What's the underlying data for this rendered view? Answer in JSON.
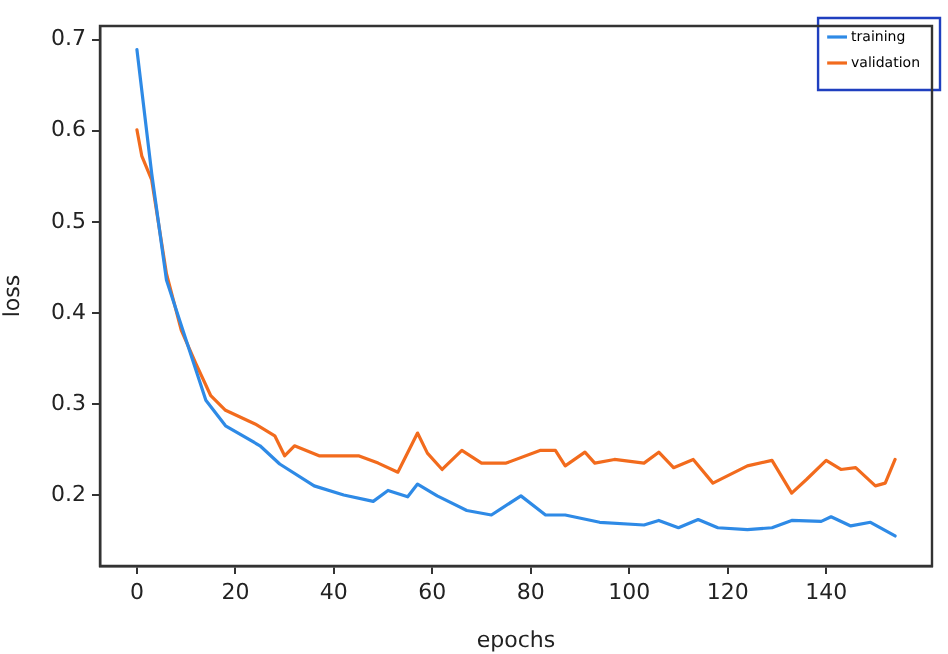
{
  "chart_data": {
    "type": "line",
    "xlabel": "epochs",
    "ylabel": "loss",
    "xlim": [
      -7.5,
      161.5
    ],
    "ylim": [
      0.122,
      0.715
    ],
    "xticks": [
      0,
      20,
      40,
      60,
      80,
      100,
      120,
      140
    ],
    "yticks": [
      0.2,
      0.3,
      0.4,
      0.5,
      0.6,
      0.7
    ],
    "grid": false,
    "legend": "top right",
    "marker": "none",
    "line_style": "solid",
    "series": [
      {
        "name": "training",
        "color": "#2e8ae6",
        "x": [
          0,
          3,
          6,
          10,
          14,
          18,
          25,
          29,
          36,
          42,
          48,
          51,
          55,
          57,
          61,
          67,
          72,
          78,
          83,
          87,
          94,
          103,
          106,
          110,
          114,
          118,
          124,
          129,
          133,
          139,
          141,
          145,
          149,
          154
        ],
        "values": [
          0.689,
          0.553,
          0.436,
          0.37,
          0.304,
          0.276,
          0.254,
          0.234,
          0.21,
          0.2,
          0.193,
          0.205,
          0.198,
          0.212,
          0.199,
          0.183,
          0.178,
          0.199,
          0.178,
          0.178,
          0.17,
          0.167,
          0.172,
          0.164,
          0.173,
          0.164,
          0.162,
          0.164,
          0.172,
          0.171,
          0.176,
          0.166,
          0.17,
          0.155
        ]
      },
      {
        "name": "validation",
        "color": "#f26b1d",
        "x": [
          0,
          1,
          3,
          6,
          9,
          12,
          15,
          18,
          24,
          28,
          30,
          32,
          37,
          45,
          49,
          53,
          57,
          59,
          62,
          66,
          70,
          75,
          82,
          85,
          87,
          91,
          93,
          97,
          103,
          106,
          109,
          113,
          117,
          124,
          129,
          133,
          136,
          140,
          143,
          146,
          150,
          152,
          154
        ],
        "values": [
          0.601,
          0.572,
          0.546,
          0.443,
          0.381,
          0.344,
          0.309,
          0.293,
          0.278,
          0.265,
          0.243,
          0.254,
          0.243,
          0.243,
          0.235,
          0.225,
          0.268,
          0.246,
          0.228,
          0.249,
          0.235,
          0.235,
          0.249,
          0.249,
          0.232,
          0.247,
          0.235,
          0.239,
          0.235,
          0.247,
          0.23,
          0.239,
          0.213,
          0.232,
          0.238,
          0.202,
          0.217,
          0.238,
          0.228,
          0.23,
          0.21,
          0.213,
          0.239
        ]
      }
    ]
  }
}
